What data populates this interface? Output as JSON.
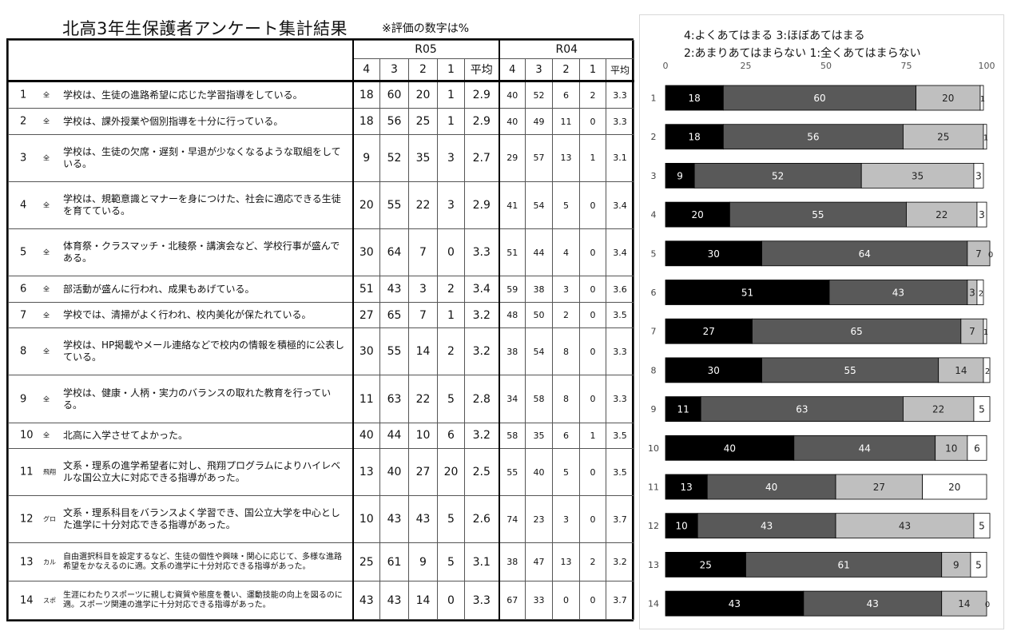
{
  "title": "北高3年生保護者アンケート集計結果",
  "note": "※評価の数字は%",
  "table": {
    "year_r05": "R05",
    "year_r04": "R04",
    "col_labels": [
      "4",
      "3",
      "2",
      "1",
      "平均"
    ],
    "rows": [
      {
        "no": "1",
        "tag": "全",
        "text": "学校は、生徒の進路希望に応じた学習指導をしている。",
        "r05": [
          "18",
          "60",
          "20",
          "1"
        ],
        "r05_avg": "2.9",
        "r04": [
          "40",
          "52",
          "6",
          "2"
        ],
        "r04_avg": "3.3"
      },
      {
        "no": "2",
        "tag": "全",
        "text": "学校は、課外授業や個別指導を十分に行っている。",
        "r05": [
          "18",
          "56",
          "25",
          "1"
        ],
        "r05_avg": "2.9",
        "r04": [
          "40",
          "49",
          "11",
          "0"
        ],
        "r04_avg": "3.3"
      },
      {
        "no": "3",
        "tag": "全",
        "text": "学校は、生徒の欠席・遅刻・早退が少なくなるような取組をしている。",
        "r05": [
          "9",
          "52",
          "35",
          "3"
        ],
        "r05_avg": "2.7",
        "r04": [
          "29",
          "57",
          "13",
          "1"
        ],
        "r04_avg": "3.1"
      },
      {
        "no": "4",
        "tag": "全",
        "text": "学校は、規範意識とマナーを身につけた、社会に適応できる生徒を育てている。",
        "r05": [
          "20",
          "55",
          "22",
          "3"
        ],
        "r05_avg": "2.9",
        "r04": [
          "41",
          "54",
          "5",
          "0"
        ],
        "r04_avg": "3.4"
      },
      {
        "no": "5",
        "tag": "全",
        "text": "体育祭・クラスマッチ・北稜祭・講演会など、学校行事が盛んである。",
        "r05": [
          "30",
          "64",
          "7",
          "0"
        ],
        "r05_avg": "3.3",
        "r04": [
          "51",
          "44",
          "4",
          "0"
        ],
        "r04_avg": "3.4"
      },
      {
        "no": "6",
        "tag": "全",
        "text": "部活動が盛んに行われ、成果もあげている。",
        "r05": [
          "51",
          "43",
          "3",
          "2"
        ],
        "r05_avg": "3.4",
        "r04": [
          "59",
          "38",
          "3",
          "0"
        ],
        "r04_avg": "3.6"
      },
      {
        "no": "7",
        "tag": "全",
        "text": "学校では、清掃がよく行われ、校内美化が保たれている。",
        "r05": [
          "27",
          "65",
          "7",
          "1"
        ],
        "r05_avg": "3.2",
        "r04": [
          "48",
          "50",
          "2",
          "0"
        ],
        "r04_avg": "3.5"
      },
      {
        "no": "8",
        "tag": "全",
        "text": "学校は、HP掲載やメール連絡などで校内の情報を積極的に公表している。",
        "r05": [
          "30",
          "55",
          "14",
          "2"
        ],
        "r05_avg": "3.2",
        "r04": [
          "38",
          "54",
          "8",
          "0"
        ],
        "r04_avg": "3.3"
      },
      {
        "no": "9",
        "tag": "全",
        "text": "学校は、健康・人柄・実力のバランスの取れた教育を行っている。",
        "r05": [
          "11",
          "63",
          "22",
          "5"
        ],
        "r05_avg": "2.8",
        "r04": [
          "34",
          "58",
          "8",
          "0"
        ],
        "r04_avg": "3.3"
      },
      {
        "no": "10",
        "tag": "全",
        "text": "北高に入学させてよかった。",
        "r05": [
          "40",
          "44",
          "10",
          "6"
        ],
        "r05_avg": "3.2",
        "r04": [
          "58",
          "35",
          "6",
          "1"
        ],
        "r04_avg": "3.5"
      },
      {
        "no": "11",
        "tag": "飛翔",
        "text": "文系・理系の進学希望者に対し、飛翔プログラムによりハイレベルな国公立大に対応できる指導があった。",
        "r05": [
          "13",
          "40",
          "27",
          "20"
        ],
        "r05_avg": "2.5",
        "r04": [
          "55",
          "40",
          "5",
          "0"
        ],
        "r04_avg": "3.5"
      },
      {
        "no": "12",
        "tag": "グロ",
        "text": "文系・理系科目をバランスよく学習でき、国公立大学を中心とした進学に十分対応できる指導があった。",
        "r05": [
          "10",
          "43",
          "43",
          "5"
        ],
        "r05_avg": "2.6",
        "r04": [
          "74",
          "23",
          "3",
          "0"
        ],
        "r04_avg": "3.7"
      },
      {
        "no": "13",
        "tag": "カル",
        "text": "自由選択科目を設定するなど、生徒の個性や興味・関心に応じて、多様な進路希望をかなえるのに適。文系の進学に十分対応できる指導があった。",
        "r05": [
          "25",
          "61",
          "9",
          "5"
        ],
        "r05_avg": "3.1",
        "r04": [
          "38",
          "47",
          "13",
          "2"
        ],
        "r04_avg": "3.2"
      },
      {
        "no": "14",
        "tag": "スポ",
        "text": "生涯にわたりスポーツに親しむ資質や態度を養い、運動技能の向上を図るのに適。スポーツ関連の進学に十分対応できる指導があった。",
        "r05": [
          "43",
          "43",
          "14",
          "0"
        ],
        "r05_avg": "3.3",
        "r04": [
          "67",
          "33",
          "0",
          "0"
        ],
        "r04_avg": "3.7"
      }
    ]
  },
  "chart_data": {
    "type": "bar",
    "orientation": "horizontal",
    "stacked": true,
    "legend": [
      "4:よくあてはまる  3:ほぼあてはまる",
      "2:あまりあてはまらない  1:全くあてはまらない"
    ],
    "xlim": [
      0,
      100
    ],
    "x_ticks": [
      "0",
      "25",
      "50",
      "75",
      "100"
    ],
    "categories": [
      "1",
      "2",
      "3",
      "4",
      "5",
      "6",
      "7",
      "8",
      "9",
      "10",
      "11",
      "12",
      "13",
      "14"
    ],
    "series": [
      {
        "name": "4",
        "color": "#000000",
        "values": [
          18,
          18,
          9,
          20,
          30,
          51,
          27,
          30,
          11,
          40,
          13,
          10,
          25,
          43
        ]
      },
      {
        "name": "3",
        "color": "#595959",
        "values": [
          60,
          56,
          52,
          55,
          64,
          43,
          65,
          55,
          63,
          44,
          40,
          43,
          61,
          43
        ]
      },
      {
        "name": "2",
        "color": "#bfbfbf",
        "values": [
          20,
          25,
          35,
          22,
          7,
          3,
          7,
          14,
          22,
          10,
          27,
          43,
          9,
          14
        ]
      },
      {
        "name": "1",
        "color": "#ffffff",
        "values": [
          1,
          1,
          3,
          3,
          0,
          2,
          1,
          2,
          5,
          6,
          20,
          5,
          5,
          0
        ]
      }
    ]
  }
}
